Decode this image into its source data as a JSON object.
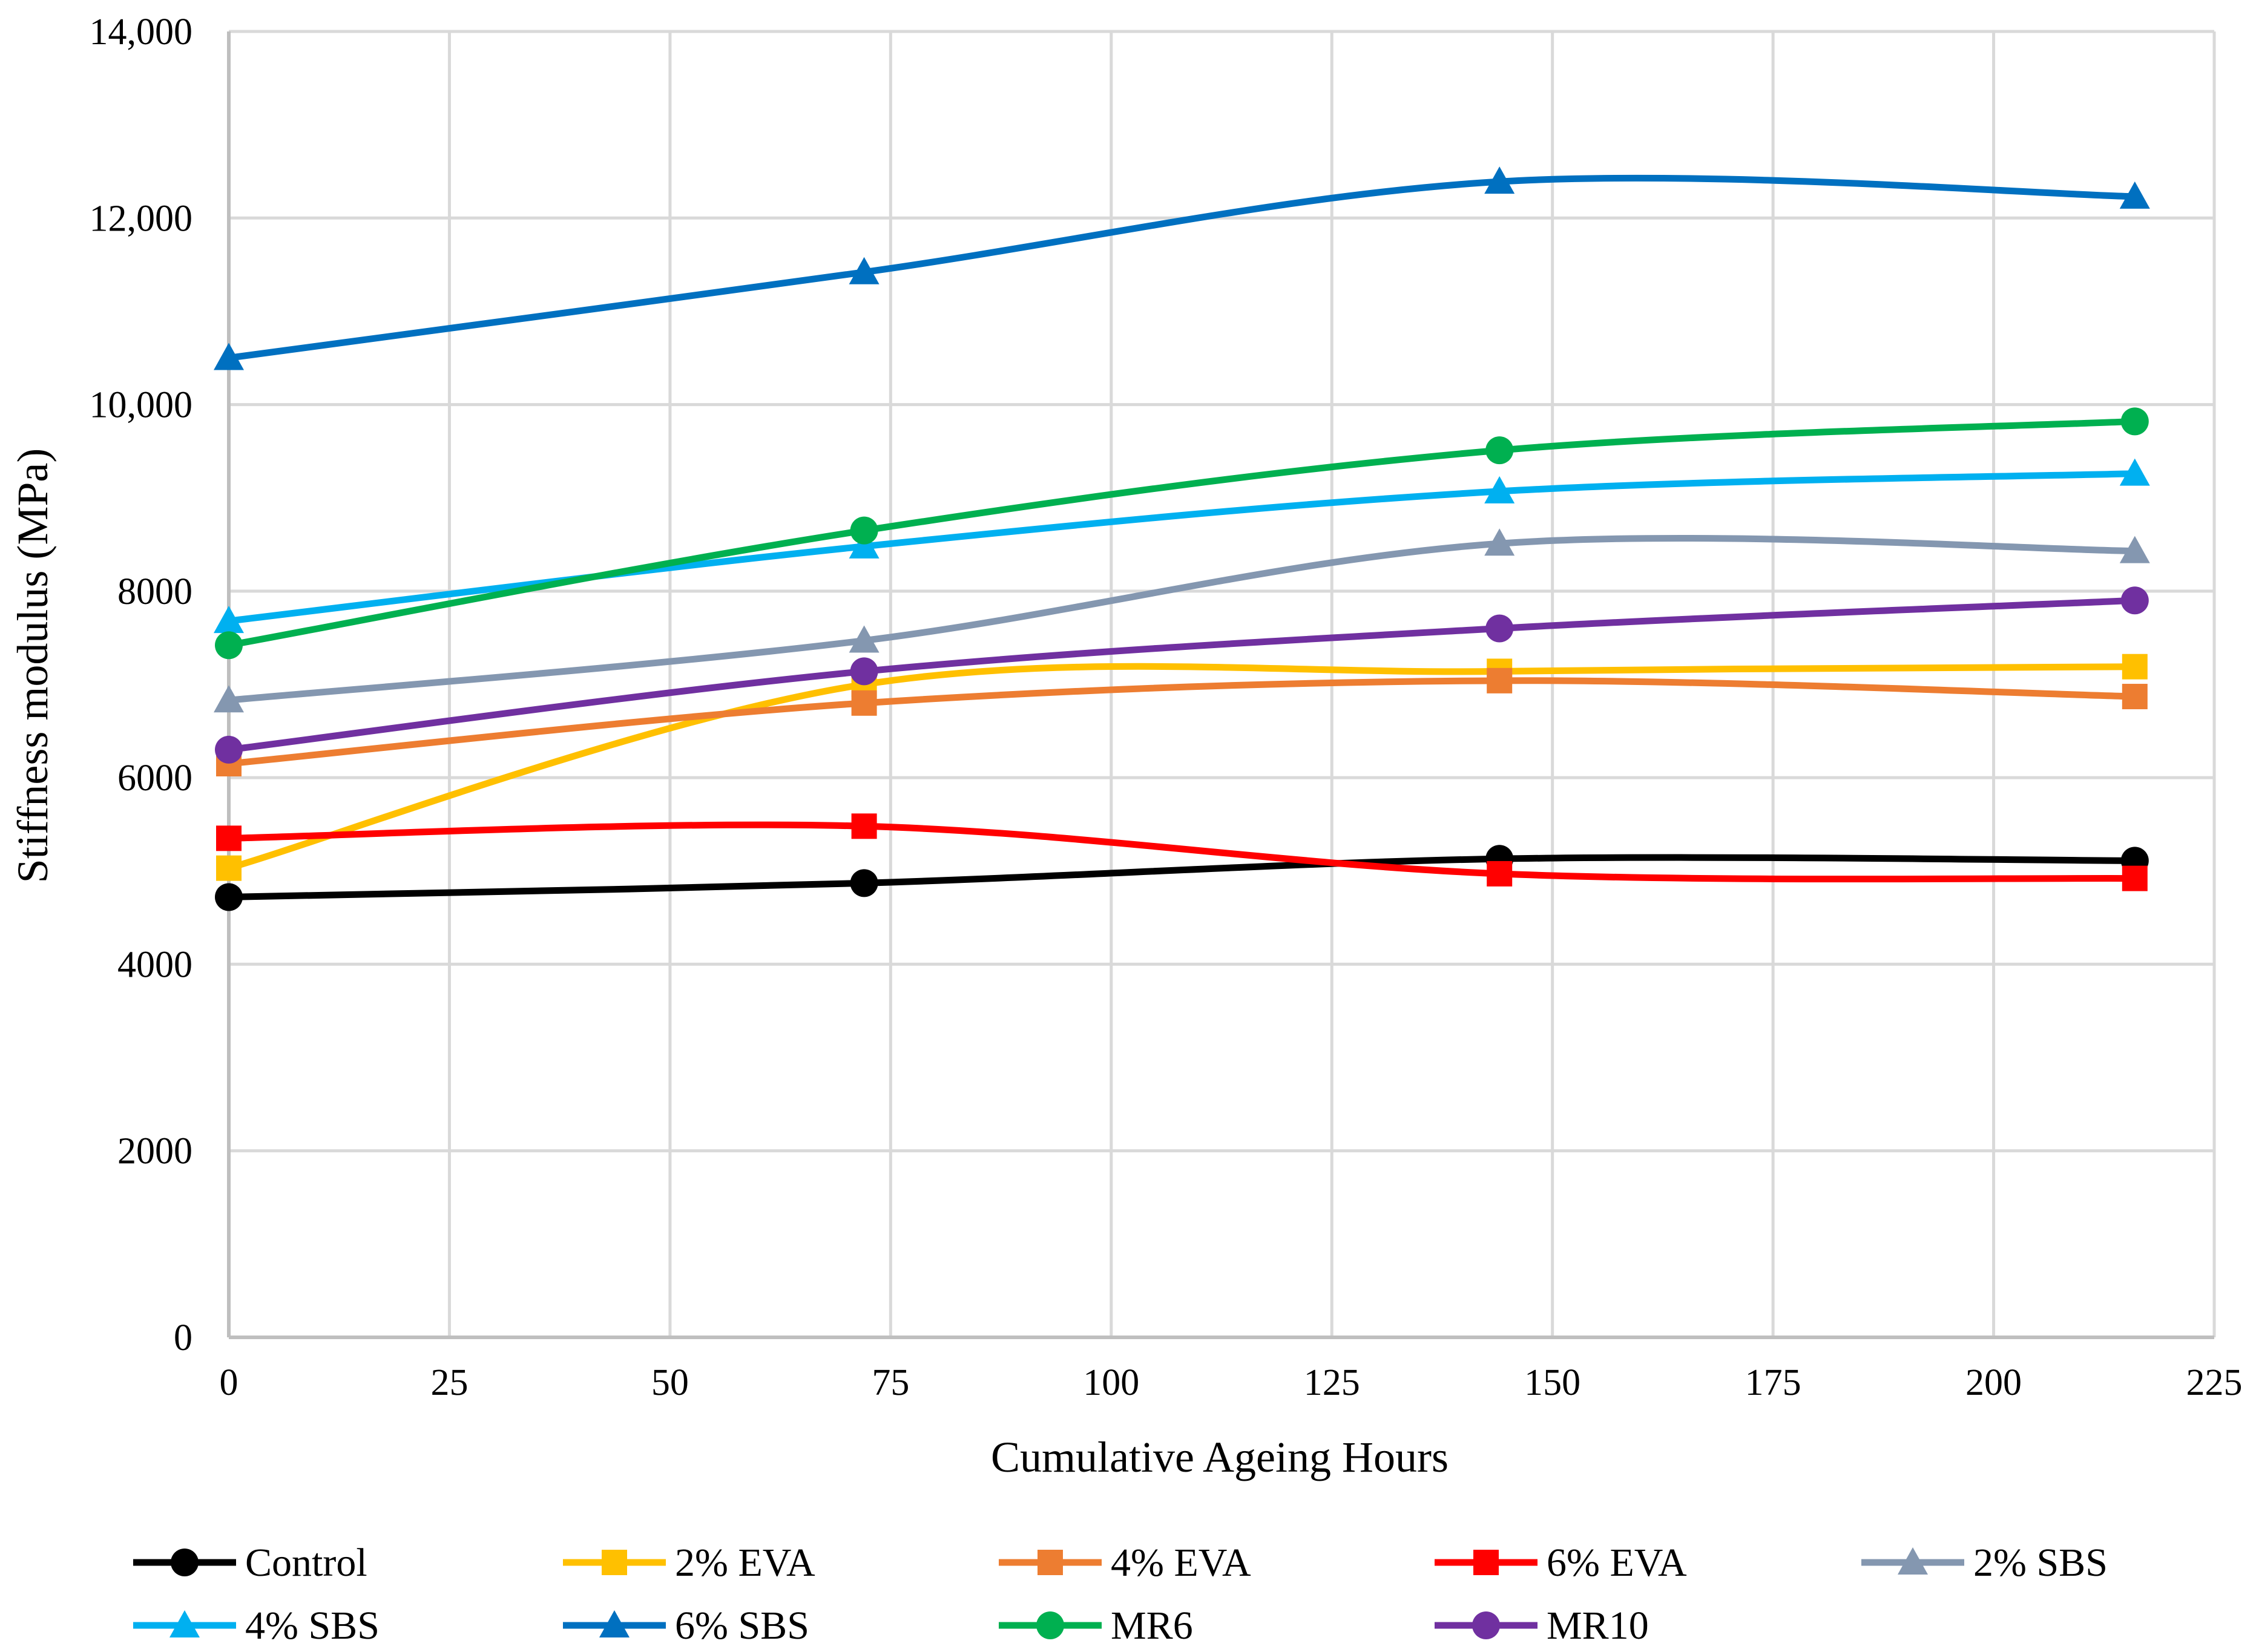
{
  "chart_data": {
    "type": "line",
    "title": "",
    "xlabel": "Cumulative Ageing Hours",
    "ylabel": "Stiffness modulus (MPa)",
    "xlim": [
      0,
      225
    ],
    "ylim": [
      0,
      14000
    ],
    "x_ticks": [
      0,
      25,
      50,
      75,
      100,
      125,
      150,
      175,
      200,
      225
    ],
    "x_tick_labels": [
      "0",
      "25",
      "50",
      "75",
      "100",
      "125",
      "150",
      "175",
      "200",
      "225"
    ],
    "y_ticks": [
      0,
      2000,
      4000,
      6000,
      8000,
      10000,
      12000,
      14000
    ],
    "y_tick_labels": [
      "0",
      "2000",
      "4000",
      "6000",
      "8000",
      "10,000",
      "12,000",
      "14,000"
    ],
    "grid": true,
    "legend_position": "bottom",
    "x": [
      0,
      72,
      144,
      216
    ],
    "series": [
      {
        "name": "Control",
        "color": "#000000",
        "marker": "circle",
        "values": [
          4720,
          4870,
          5130,
          5110
        ]
      },
      {
        "name": "2% EVA",
        "color": "#FFC000",
        "marker": "square",
        "values": [
          5030,
          7000,
          7140,
          7190
        ]
      },
      {
        "name": "4% EVA",
        "color": "#ED7D31",
        "marker": "square",
        "values": [
          6150,
          6800,
          7040,
          6870
        ]
      },
      {
        "name": "6% EVA",
        "color": "#FF0000",
        "marker": "square",
        "values": [
          5350,
          5480,
          4970,
          4920
        ]
      },
      {
        "name": "2% SBS",
        "color": "#8497B0",
        "marker": "triangle",
        "values": [
          6830,
          7470,
          8510,
          8430
        ]
      },
      {
        "name": "4% SBS",
        "color": "#00B0F0",
        "marker": "triangle",
        "values": [
          7680,
          8480,
          9070,
          9260
        ]
      },
      {
        "name": "6% SBS",
        "color": "#0070C0",
        "marker": "triangle",
        "values": [
          10500,
          11420,
          12390,
          12230
        ]
      },
      {
        "name": "MR6",
        "color": "#00B050",
        "marker": "circle",
        "values": [
          7420,
          8650,
          9510,
          9820
        ]
      },
      {
        "name": "MR10",
        "color": "#7030A0",
        "marker": "circle",
        "values": [
          6300,
          7140,
          7600,
          7900
        ]
      }
    ]
  }
}
